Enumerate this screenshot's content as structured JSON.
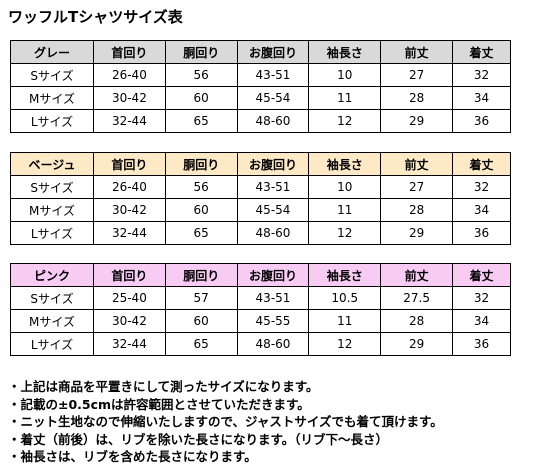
{
  "title": "ワッフルTシャツサイズ表",
  "tables": [
    {
      "header": [
        "グレー",
        "首回り",
        "胴回り",
        "お腹回り",
        "袖長さ",
        "前丈",
        "着丈"
      ],
      "rows": [
        [
          "Sサイズ",
          "26-40",
          "56",
          "43-51",
          "10",
          "27",
          "32"
        ],
        [
          "Mサイズ",
          "30-42",
          "60",
          "45-54",
          "11",
          "28",
          "34"
        ],
        [
          "Lサイズ",
          "32-44",
          "65",
          "48-60",
          "12",
          "29",
          "36"
        ]
      ]
    },
    {
      "header": [
        "ベージュ",
        "首回り",
        "胴回り",
        "お腹回り",
        "袖長さ",
        "前丈",
        "着丈"
      ],
      "rows": [
        [
          "Sサイズ",
          "26-40",
          "56",
          "43-51",
          "10",
          "27",
          "32"
        ],
        [
          "Mサイズ",
          "30-42",
          "60",
          "45-54",
          "11",
          "28",
          "34"
        ],
        [
          "Lサイズ",
          "32-44",
          "65",
          "48-60",
          "12",
          "29",
          "36"
        ]
      ]
    },
    {
      "header": [
        "ピンク",
        "首回り",
        "胴回り",
        "お腹回り",
        "袖長さ",
        "前丈",
        "着丈"
      ],
      "rows": [
        [
          "Sサイズ",
          "25-40",
          "57",
          "43-51",
          "10.5",
          "27.5",
          "32"
        ],
        [
          "Mサイズ",
          "30-42",
          "60",
          "45-55",
          "11",
          "28",
          "34"
        ],
        [
          "Lサイズ",
          "32-44",
          "65",
          "48-60",
          "12",
          "29",
          "36"
        ]
      ]
    }
  ],
  "notes": [
    "・上記は商品を平置きにして測ったサイズになります。",
    "・記載の±0.5cmは許容範囲とさせていただきます。",
    "・ニット生地なので伸縮いたしますので、ジャストサイズでも着て頂けます。",
    "・着丈（前後）は、リブを除いた長さになります。（リブ下〜長さ）",
    "・袖長さは、リブを含めた長さになります。"
  ]
}
